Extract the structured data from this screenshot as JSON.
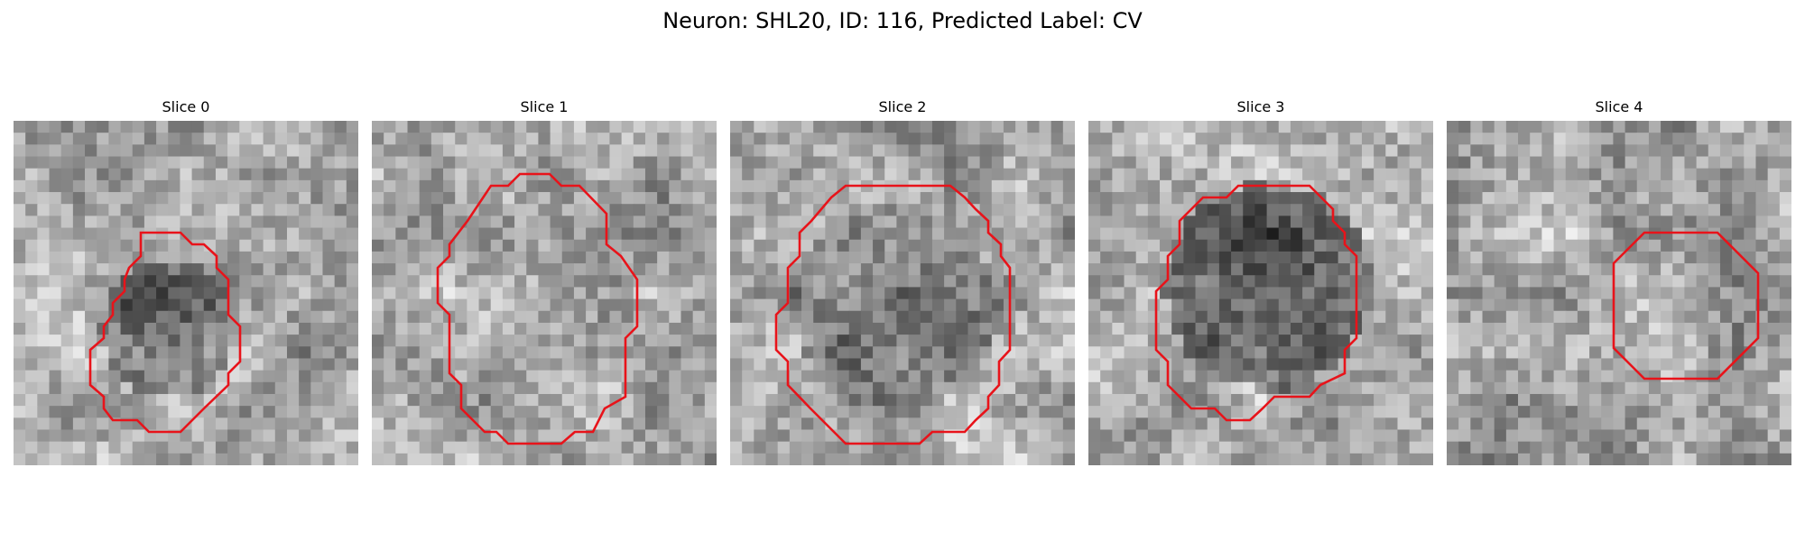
{
  "figure": {
    "title": "Neuron: SHL20, ID: 116, Predicted Label: CV",
    "contour_color": "#e8131a"
  },
  "panels": [
    {
      "title": "Slice 0"
    },
    {
      "title": "Slice 1"
    },
    {
      "title": "Slice 2"
    },
    {
      "title": "Slice 3"
    },
    {
      "title": "Slice 4"
    }
  ]
}
